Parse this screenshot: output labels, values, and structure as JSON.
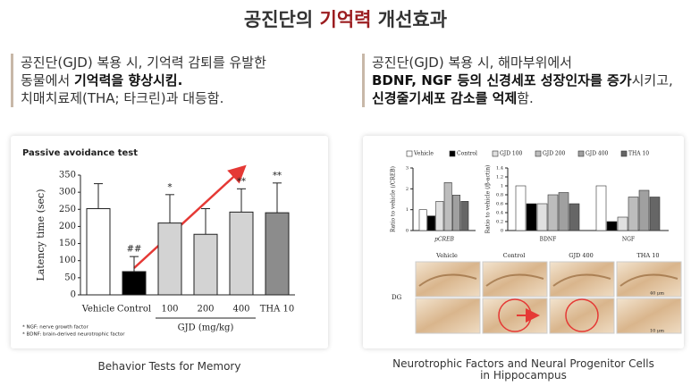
{
  "title": {
    "plain": "공진단의 ",
    "highlight": "기억력",
    "rest": " 개선효과"
  },
  "left_text": [
    [
      "공진단(GJD) 복용 시, 기억력 감퇴를 유발한"
    ],
    [
      "동물에서 ",
      "기억력을 향상시킴."
    ],
    [
      "치매치료제(THA; 타크린)과 대등함."
    ]
  ],
  "right_text": [
    [
      "공진단(GJD) 복용 시, 해마부위에서"
    ],
    [
      "BDNF, NGF 등의 신경세포 성장인자를 증가",
      "시키고,"
    ],
    [
      "신경줄기세포 감소를 억제",
      "함."
    ]
  ],
  "captions": {
    "left": "Behavior Tests for Memory",
    "right": [
      "Neurotrophic Factors and Neural Progenitor Cells",
      "in Hippocampus"
    ]
  },
  "micrographs": {
    "columns": [
      "Vehicle",
      "Control",
      "GJD 400",
      "THA 10"
    ],
    "region": "DG",
    "scales": [
      "40 μm",
      "10 μm"
    ]
  },
  "chart_data": [
    {
      "type": "bar",
      "title": "Passive avoidance test",
      "y_label": "Latency time (sec)",
      "x_group_label": "GJD (mg/kg)",
      "categories": [
        "Vehicle",
        "Control",
        "100",
        "200",
        "400",
        "THA 10"
      ],
      "values": [
        252,
        68,
        210,
        177,
        242,
        240
      ],
      "errors": [
        73,
        44,
        83,
        75,
        68,
        87
      ],
      "colors": [
        "#ffffff",
        "#000000",
        "#d3d3d3",
        "#d3d3d3",
        "#d3d3d3",
        "#8c8c8c"
      ],
      "annotations": [
        null,
        "##",
        "*",
        null,
        "**",
        "**"
      ],
      "ylim": [
        0,
        350
      ],
      "yticks": [
        0,
        50,
        100,
        150,
        200,
        250,
        300,
        350
      ],
      "footnotes": [
        "* NGF: nerve growth factor",
        "* BDNF: brain-derived neurotrophic factor"
      ]
    },
    {
      "type": "grouped_bar",
      "y_label": "Ratio to vehicle (/CREB)",
      "categories": [
        "pCREB"
      ],
      "ylim": [
        0,
        3
      ],
      "yticks": [
        0,
        1,
        2,
        3
      ],
      "series": [
        {
          "name": "Vehicle",
          "color": "#ffffff",
          "values": [
            1.0
          ]
        },
        {
          "name": "Control",
          "color": "#000000",
          "values": [
            0.7
          ]
        },
        {
          "name": "GJD 100",
          "color": "#e0e0e0",
          "values": [
            1.4
          ]
        },
        {
          "name": "GJD 200",
          "color": "#bdbdbd",
          "values": [
            2.3
          ]
        },
        {
          "name": "GJD 400",
          "color": "#a0a0a0",
          "values": [
            1.7
          ]
        },
        {
          "name": "THA 10",
          "color": "#666666",
          "values": [
            1.4
          ]
        }
      ]
    },
    {
      "type": "grouped_bar",
      "y_label": "Ratio to vehicle (/β-actin)",
      "categories": [
        "BDNF",
        "NGF"
      ],
      "ylim": [
        0,
        1.4
      ],
      "yticks": [
        0,
        0.2,
        0.4,
        0.6,
        0.8,
        1,
        1.2,
        1.4
      ],
      "series": [
        {
          "color": "#ffffff",
          "values": [
            1.0,
            1.0
          ]
        },
        {
          "color": "#000000",
          "values": [
            0.6,
            0.2
          ]
        },
        {
          "color": "#e0e0e0",
          "values": [
            0.6,
            0.3
          ]
        },
        {
          "color": "#bdbdbd",
          "values": [
            0.8,
            0.75
          ]
        },
        {
          "color": "#a0a0a0",
          "values": [
            0.85,
            0.9
          ]
        },
        {
          "color": "#666666",
          "values": [
            0.6,
            0.75
          ]
        }
      ]
    }
  ]
}
